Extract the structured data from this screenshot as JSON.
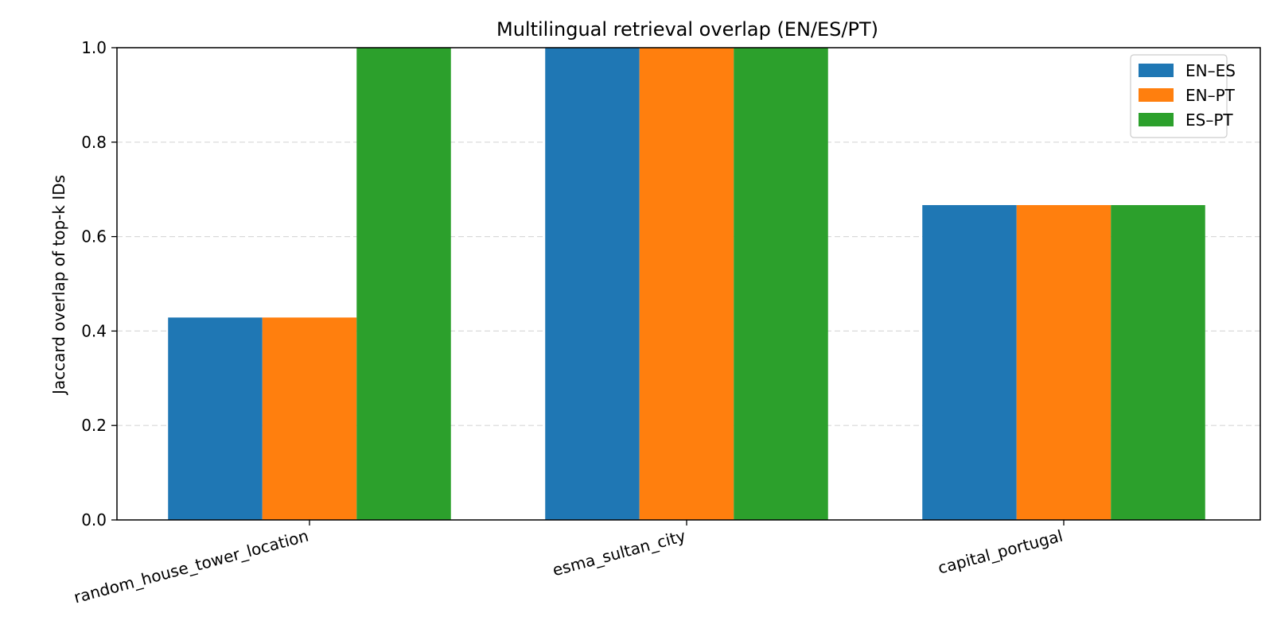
{
  "chart_data": {
    "type": "bar",
    "title": "Multilingual retrieval overlap (EN/ES/PT)",
    "xlabel": "",
    "ylabel": "Jaccard overlap of top-k IDs",
    "ylim": [
      0,
      1.0
    ],
    "yticks": [
      "0.0",
      "0.2",
      "0.4",
      "0.6",
      "0.8",
      "1.0"
    ],
    "grid": true,
    "legend_position": "top-right",
    "categories": [
      "random_house_tower_location",
      "esma_sultan_city",
      "capital_portugal"
    ],
    "series": [
      {
        "name": "EN–ES",
        "color": "#1f77b4",
        "values": [
          0.4286,
          1.0,
          0.6667
        ]
      },
      {
        "name": "EN–PT",
        "color": "#ff7f0e",
        "values": [
          0.4286,
          1.0,
          0.6667
        ]
      },
      {
        "name": "ES–PT",
        "color": "#2ca02c",
        "values": [
          1.0,
          1.0,
          0.6667
        ]
      }
    ]
  }
}
